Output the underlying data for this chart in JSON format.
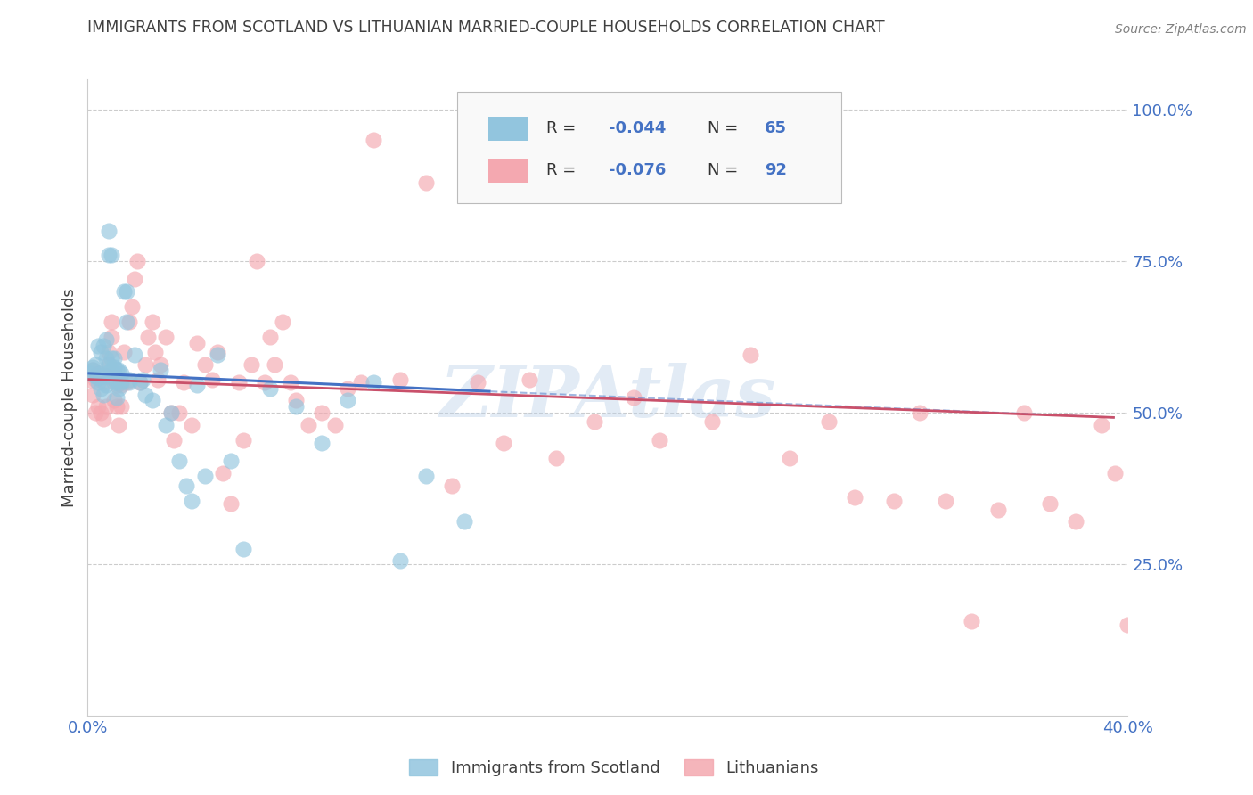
{
  "title": "IMMIGRANTS FROM SCOTLAND VS LITHUANIAN MARRIED-COUPLE HOUSEHOLDS CORRELATION CHART",
  "source": "Source: ZipAtlas.com",
  "ylabel_left": "Married-couple Households",
  "xlim": [
    0.0,
    0.4
  ],
  "ylim": [
    0.0,
    1.05
  ],
  "yticks_right": [
    0.25,
    0.5,
    0.75,
    1.0
  ],
  "yticklabels_right": [
    "25.0%",
    "50.0%",
    "75.0%",
    "100.0%"
  ],
  "legend_label1": "Immigrants from Scotland",
  "legend_label2": "Lithuanians",
  "color_blue": "#92C5DE",
  "color_pink": "#F4A8B0",
  "color_blue_line": "#4472C4",
  "color_pink_line": "#C9506A",
  "color_axis_blue": "#4472C4",
  "watermark": "ZIPAtlas",
  "title_color": "#404040",
  "blue_line_x": [
    0.0,
    0.155
  ],
  "blue_line_y": [
    0.565,
    0.535
  ],
  "pink_line_x": [
    0.0,
    0.395
  ],
  "pink_line_y": [
    0.555,
    0.492
  ],
  "scatter1_x": [
    0.001,
    0.002,
    0.002,
    0.003,
    0.003,
    0.004,
    0.004,
    0.004,
    0.005,
    0.005,
    0.005,
    0.006,
    0.006,
    0.006,
    0.007,
    0.007,
    0.007,
    0.007,
    0.008,
    0.008,
    0.008,
    0.008,
    0.009,
    0.009,
    0.009,
    0.01,
    0.01,
    0.01,
    0.01,
    0.011,
    0.011,
    0.011,
    0.012,
    0.012,
    0.013,
    0.013,
    0.014,
    0.015,
    0.015,
    0.016,
    0.016,
    0.018,
    0.02,
    0.021,
    0.022,
    0.025,
    0.028,
    0.03,
    0.032,
    0.035,
    0.038,
    0.04,
    0.042,
    0.045,
    0.05,
    0.055,
    0.06,
    0.07,
    0.08,
    0.09,
    0.1,
    0.11,
    0.12,
    0.13,
    0.145
  ],
  "scatter1_y": [
    0.565,
    0.57,
    0.575,
    0.58,
    0.56,
    0.55,
    0.558,
    0.61,
    0.54,
    0.565,
    0.6,
    0.53,
    0.56,
    0.61,
    0.545,
    0.565,
    0.59,
    0.62,
    0.56,
    0.58,
    0.76,
    0.8,
    0.57,
    0.59,
    0.76,
    0.55,
    0.565,
    0.575,
    0.59,
    0.525,
    0.55,
    0.57,
    0.54,
    0.57,
    0.55,
    0.565,
    0.7,
    0.7,
    0.65,
    0.55,
    0.555,
    0.595,
    0.55,
    0.555,
    0.53,
    0.52,
    0.57,
    0.48,
    0.5,
    0.42,
    0.38,
    0.355,
    0.545,
    0.395,
    0.595,
    0.42,
    0.275,
    0.54,
    0.51,
    0.45,
    0.52,
    0.55,
    0.255,
    0.395,
    0.32
  ],
  "scatter2_x": [
    0.001,
    0.002,
    0.002,
    0.003,
    0.003,
    0.004,
    0.004,
    0.005,
    0.005,
    0.006,
    0.006,
    0.007,
    0.007,
    0.008,
    0.008,
    0.009,
    0.009,
    0.01,
    0.01,
    0.011,
    0.011,
    0.012,
    0.012,
    0.013,
    0.013,
    0.014,
    0.015,
    0.016,
    0.017,
    0.018,
    0.019,
    0.02,
    0.022,
    0.023,
    0.025,
    0.026,
    0.027,
    0.028,
    0.03,
    0.032,
    0.033,
    0.035,
    0.037,
    0.04,
    0.042,
    0.045,
    0.048,
    0.05,
    0.052,
    0.055,
    0.058,
    0.06,
    0.063,
    0.065,
    0.068,
    0.07,
    0.072,
    0.075,
    0.078,
    0.08,
    0.085,
    0.09,
    0.095,
    0.1,
    0.105,
    0.11,
    0.12,
    0.13,
    0.14,
    0.15,
    0.16,
    0.17,
    0.18,
    0.195,
    0.21,
    0.22,
    0.24,
    0.255,
    0.27,
    0.285,
    0.295,
    0.31,
    0.32,
    0.33,
    0.34,
    0.35,
    0.36,
    0.37,
    0.38,
    0.39,
    0.395,
    0.4
  ],
  "scatter2_y": [
    0.555,
    0.53,
    0.57,
    0.5,
    0.555,
    0.51,
    0.565,
    0.5,
    0.56,
    0.49,
    0.55,
    0.51,
    0.56,
    0.6,
    0.58,
    0.625,
    0.65,
    0.52,
    0.555,
    0.51,
    0.545,
    0.48,
    0.55,
    0.51,
    0.545,
    0.6,
    0.55,
    0.65,
    0.675,
    0.72,
    0.75,
    0.55,
    0.58,
    0.625,
    0.65,
    0.6,
    0.555,
    0.58,
    0.625,
    0.5,
    0.455,
    0.5,
    0.55,
    0.48,
    0.615,
    0.58,
    0.555,
    0.6,
    0.4,
    0.35,
    0.55,
    0.455,
    0.58,
    0.75,
    0.55,
    0.625,
    0.58,
    0.65,
    0.55,
    0.52,
    0.48,
    0.5,
    0.48,
    0.54,
    0.55,
    0.95,
    0.555,
    0.88,
    0.38,
    0.55,
    0.45,
    0.555,
    0.425,
    0.485,
    0.525,
    0.455,
    0.485,
    0.595,
    0.425,
    0.485,
    0.36,
    0.355,
    0.5,
    0.355,
    0.155,
    0.34,
    0.5,
    0.35,
    0.32,
    0.48,
    0.4,
    0.15
  ]
}
